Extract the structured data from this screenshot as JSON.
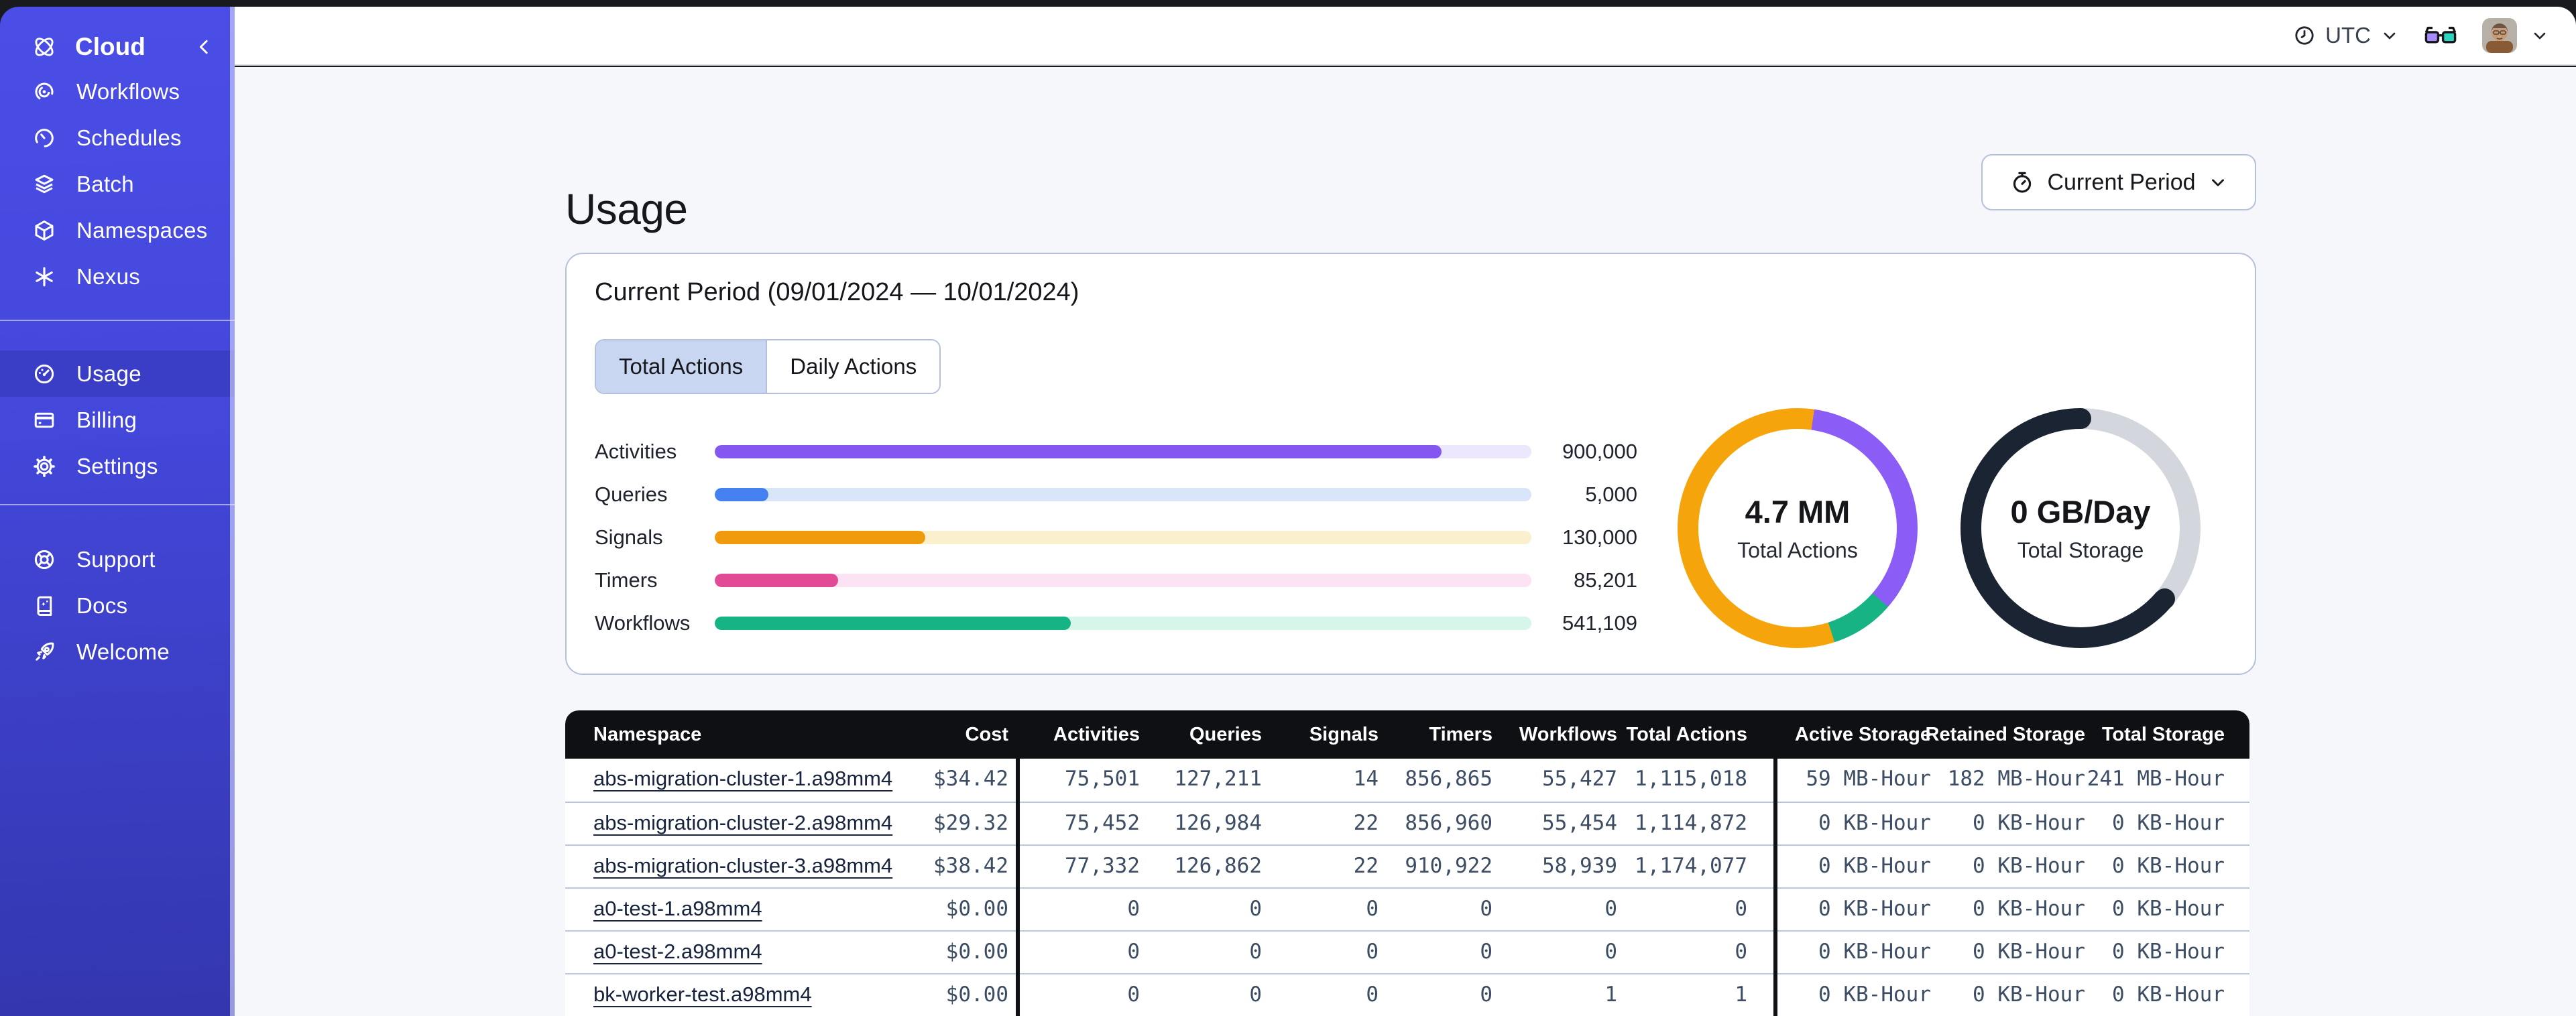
{
  "sidebar": {
    "brand": "Cloud",
    "nav_main": [
      {
        "label": "Workflows"
      },
      {
        "label": "Schedules"
      },
      {
        "label": "Batch"
      },
      {
        "label": "Namespaces"
      },
      {
        "label": "Nexus"
      }
    ],
    "nav_account": [
      {
        "label": "Usage",
        "active": true
      },
      {
        "label": "Billing"
      },
      {
        "label": "Settings"
      }
    ],
    "nav_footer": [
      {
        "label": "Support"
      },
      {
        "label": "Docs"
      },
      {
        "label": "Welcome"
      }
    ]
  },
  "topbar": {
    "timezone": "UTC"
  },
  "page": {
    "title": "Usage",
    "period_button": "Current Period"
  },
  "usage_card": {
    "heading": "Current Period (09/01/2024 — 10/01/2024)",
    "tabs": [
      {
        "label": "Total Actions",
        "active": true
      },
      {
        "label": "Daily Actions",
        "active": false
      }
    ]
  },
  "chart_data": [
    {
      "type": "bar",
      "title": "Current Period (09/01/2024 — 10/01/2024)",
      "categories": [
        "Activities",
        "Queries",
        "Signals",
        "Timers",
        "Workflows"
      ],
      "values": [
        900000,
        5000,
        130000,
        85201,
        541109
      ],
      "value_labels": [
        "900,000",
        "5,000",
        "130,000",
        "85,201",
        "541,109"
      ],
      "display_percent": [
        89,
        6.6,
        25.8,
        15.1,
        43.6
      ],
      "colors": [
        "#8457F0",
        "#4480F0",
        "#EF9B0D",
        "#E34A96",
        "#16B385"
      ],
      "track_colors": [
        "#ECE7FC",
        "#D9E6FA",
        "#FBF0CE",
        "#FBE3F4",
        "#D7F6EA"
      ]
    },
    {
      "type": "donut",
      "center_value": "4.7 MM",
      "center_label": "Total Actions",
      "segments": [
        {
          "name": "Signals",
          "color": "#F5A40B",
          "from": 0,
          "to": 8
        },
        {
          "name": "Activities",
          "color": "#8B5CF6",
          "from": 8,
          "to": 131
        },
        {
          "name": "Workflows",
          "color": "#17B385",
          "from": 131,
          "to": 162
        },
        {
          "name": "Signals",
          "color": "#F5A40B",
          "from": 162,
          "to": 360
        }
      ]
    },
    {
      "type": "donut",
      "center_value": "0 GB/Day",
      "center_label": "Total Storage",
      "segments": [
        {
          "name": "remaining",
          "color": "#D3D7DD",
          "from": 0,
          "to": 130
        },
        {
          "name": "used",
          "color": "#1A2433",
          "from": 130,
          "to": 360
        }
      ],
      "cap_color": "#1A2433"
    }
  ],
  "table": {
    "columns": [
      "Namespace",
      "Cost",
      "Activities",
      "Queries",
      "Signals",
      "Timers",
      "Workflows",
      "Total Actions",
      "Active Storage",
      "Retained Storage",
      "Total Storage"
    ],
    "rows": [
      [
        "abs-migration-cluster-1.a98mm4",
        "$34.42",
        "75,501",
        "127,211",
        "14",
        "856,865",
        "55,427",
        "1,115,018",
        "59 MB-Hour",
        "182 MB-Hour",
        "241 MB-Hour"
      ],
      [
        "abs-migration-cluster-2.a98mm4",
        "$29.32",
        "75,452",
        "126,984",
        "22",
        "856,960",
        "55,454",
        "1,114,872",
        "0 KB-Hour",
        "0 KB-Hour",
        "0 KB-Hour"
      ],
      [
        "abs-migration-cluster-3.a98mm4",
        "$38.42",
        "77,332",
        "126,862",
        "22",
        "910,922",
        "58,939",
        "1,174,077",
        "0 KB-Hour",
        "0 KB-Hour",
        "0 KB-Hour"
      ],
      [
        "a0-test-1.a98mm4",
        "$0.00",
        "0",
        "0",
        "0",
        "0",
        "0",
        "0",
        "0 KB-Hour",
        "0 KB-Hour",
        "0 KB-Hour"
      ],
      [
        "a0-test-2.a98mm4",
        "$0.00",
        "0",
        "0",
        "0",
        "0",
        "0",
        "0",
        "0 KB-Hour",
        "0 KB-Hour",
        "0 KB-Hour"
      ],
      [
        "bk-worker-test.a98mm4",
        "$0.00",
        "0",
        "0",
        "0",
        "0",
        "1",
        "1",
        "0 KB-Hour",
        "0 KB-Hour",
        "0 KB-Hour"
      ]
    ]
  }
}
